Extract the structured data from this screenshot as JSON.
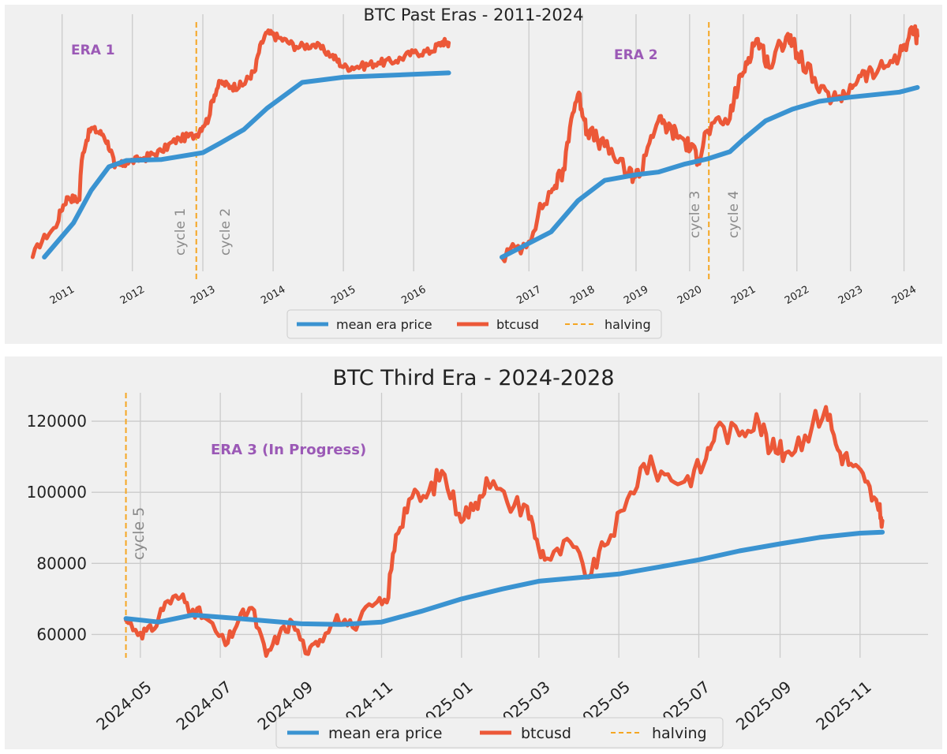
{
  "colors": {
    "background": "#f0f0f0",
    "grid": "#cbcbcb",
    "mean": "#3a93d1",
    "btc": "#ec5838",
    "halving": "#f5a623",
    "era_label": "#9b59b6",
    "cycle_label": "#8a8a8a",
    "text": "#222222"
  },
  "legend": {
    "mean": "mean era price",
    "btc": "btcusd",
    "halving": "halving"
  },
  "chart_data": [
    {
      "type": "line",
      "title": "BTC Past Eras - 2011-2024",
      "log_scale": true,
      "y_tick_labels_shown": false,
      "grid": "vertical only",
      "legend_placement": "bottom-center",
      "panels": [
        {
          "era_label": "ERA 1",
          "x_ticks": [
            "2011",
            "2012",
            "2013",
            "2014",
            "2015",
            "2016"
          ],
          "halvings": [
            "2012-11-28"
          ],
          "cycle_labels": [
            "cycle 1",
            "cycle 2"
          ],
          "series": [
            {
              "name": "btcusd",
              "x": [
                "2010-08",
                "2010-12",
                "2011-02",
                "2011-04",
                "2011-06",
                "2011-08",
                "2011-10",
                "2011-12",
                "2012-03",
                "2012-06",
                "2012-09",
                "2012-12",
                "2013-02",
                "2013-04",
                "2013-06",
                "2013-08",
                "2013-10",
                "2013-12",
                "2014-02",
                "2014-05",
                "2014-08",
                "2014-11",
                "2015-01",
                "2015-04",
                "2015-07",
                "2015-10",
                "2016-01",
                "2016-04",
                "2016-06",
                "2016-07"
              ],
              "y": [
                0.07,
                0.25,
                0.9,
                0.8,
                17,
                13,
                3.2,
                3.9,
                4.8,
                6.4,
                11,
                13,
                26,
                120,
                100,
                110,
                200,
                1000,
                800,
                550,
                600,
                380,
                230,
                240,
                280,
                300,
                430,
                450,
                680,
                650
              ]
            },
            {
              "name": "mean era price",
              "x": [
                "2010-10",
                "2011-03",
                "2011-06",
                "2011-09",
                "2011-12",
                "2012-06",
                "2013-01",
                "2013-04",
                "2013-08",
                "2013-12",
                "2014-06",
                "2015-01",
                "2016-07"
              ],
              "y": [
                0.07,
                0.3,
                1.2,
                3.3,
                4.3,
                4.5,
                6,
                9,
                16,
                40,
                120,
                150,
                180
              ]
            }
          ]
        },
        {
          "era_label": "ERA 2",
          "x_ticks": [
            "2017",
            "2018",
            "2019",
            "2020",
            "2021",
            "2022",
            "2023",
            "2024"
          ],
          "halvings": [
            "2020-05-11"
          ],
          "cycle_labels": [
            "cycle 3",
            "cycle 4"
          ],
          "series": [
            {
              "name": "btcusd",
              "x": [
                "2016-07",
                "2017-01",
                "2017-06",
                "2017-09",
                "2017-12",
                "2018-02",
                "2018-06",
                "2018-11",
                "2019-02",
                "2019-06",
                "2019-09",
                "2019-12",
                "2020-03",
                "2020-05",
                "2020-10",
                "2021-01",
                "2021-04",
                "2021-07",
                "2021-11",
                "2022-01",
                "2022-06",
                "2022-11",
                "2023-03",
                "2023-07",
                "2023-12",
                "2024-03",
                "2024-04"
              ],
              "y": [
                650,
                900,
                2500,
                4000,
                19000,
                9000,
                6500,
                3700,
                3600,
                11000,
                9000,
                7200,
                5000,
                9000,
                11500,
                30000,
                60000,
                33000,
                67000,
                45000,
                20000,
                16500,
                28000,
                30000,
                43000,
                71000,
                64000
              ]
            },
            {
              "name": "mean era price",
              "x": [
                "2016-07",
                "2017-06",
                "2017-12",
                "2018-06",
                "2019-01",
                "2019-06",
                "2019-12",
                "2020-05",
                "2020-10",
                "2021-01",
                "2021-06",
                "2021-12",
                "2022-06",
                "2023-01",
                "2023-12",
                "2024-04"
              ],
              "y": [
                650,
                1100,
                2100,
                3200,
                3600,
                3800,
                4500,
                5000,
                5800,
                7500,
                11000,
                14000,
                16500,
                18000,
                20000,
                22000
              ]
            }
          ]
        }
      ]
    },
    {
      "type": "line",
      "title": "BTC Third Era - 2024-2028",
      "era_label": "ERA 3 (In Progress)",
      "cycle_labels": [
        "cycle 5"
      ],
      "halvings": [
        "2024-04-20"
      ],
      "x_ticks": [
        "2024-05",
        "2024-07",
        "2024-09",
        "2024-11",
        "2025-01",
        "2025-03",
        "2025-05",
        "2025-07",
        "2025-09",
        "2025-11"
      ],
      "y_ticks": [
        60000,
        80000,
        100000,
        120000
      ],
      "ylim": [
        54000,
        128000
      ],
      "grid": true,
      "legend_placement": "bottom-center",
      "series": [
        {
          "name": "btcusd",
          "x": [
            "2024-04-20",
            "2024-05-01",
            "2024-05-10",
            "2024-05-20",
            "2024-06-01",
            "2024-06-10",
            "2024-06-20",
            "2024-07-05",
            "2024-07-15",
            "2024-07-25",
            "2024-08-05",
            "2024-08-15",
            "2024-08-25",
            "2024-09-06",
            "2024-09-15",
            "2024-09-28",
            "2024-10-10",
            "2024-10-25",
            "2024-11-05",
            "2024-11-12",
            "2024-11-22",
            "2024-12-05",
            "2024-12-17",
            "2024-12-30",
            "2025-01-10",
            "2025-01-20",
            "2025-02-05",
            "2025-02-20",
            "2025-03-01",
            "2025-03-10",
            "2025-03-25",
            "2025-04-08",
            "2025-04-20",
            "2025-05-05",
            "2025-05-20",
            "2025-06-05",
            "2025-06-20",
            "2025-07-05",
            "2025-07-14",
            "2025-08-01",
            "2025-08-14",
            "2025-08-25",
            "2025-09-05",
            "2025-09-20",
            "2025-10-06",
            "2025-10-15",
            "2025-10-25",
            "2025-11-05",
            "2025-11-15",
            "2025-11-18"
          ],
          "y": [
            64000,
            60500,
            61000,
            69000,
            70500,
            67000,
            64500,
            57000,
            64000,
            67500,
            54000,
            60000,
            63500,
            54500,
            58500,
            65500,
            62000,
            68000,
            69000,
            88000,
            98000,
            98500,
            106000,
            94000,
            95000,
            104000,
            97000,
            96000,
            84000,
            81000,
            86000,
            76000,
            85000,
            95000,
            108000,
            105000,
            103000,
            108000,
            118000,
            116000,
            122000,
            112000,
            111000,
            116000,
            124000,
            112000,
            108000,
            103000,
            95000,
            92000
          ]
        },
        {
          "name": "mean era price",
          "x": [
            "2024-04-20",
            "2024-05-15",
            "2024-06-10",
            "2024-07-15",
            "2024-09-01",
            "2024-10-01",
            "2024-11-01",
            "2024-12-01",
            "2025-01-01",
            "2025-02-01",
            "2025-03-01",
            "2025-04-01",
            "2025-05-01",
            "2025-06-01",
            "2025-07-01",
            "2025-08-01",
            "2025-09-01",
            "2025-10-01",
            "2025-11-01",
            "2025-11-18"
          ],
          "y": [
            64500,
            63500,
            65500,
            64500,
            63000,
            62800,
            63500,
            66500,
            70000,
            72800,
            75000,
            76000,
            77000,
            79000,
            81000,
            83500,
            85500,
            87300,
            88500,
            88800
          ]
        }
      ]
    }
  ]
}
